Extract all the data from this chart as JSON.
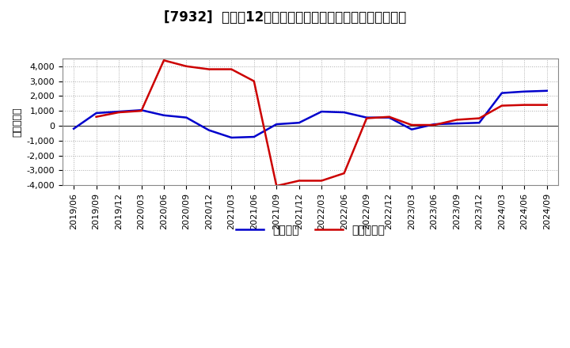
{
  "title": "[7932]  利益だ12か月移動合計の対前年同期増減額の推移",
  "ylabel": "（百万円）",
  "ylim": [
    -4000,
    4500
  ],
  "yticks": [
    -4000,
    -3000,
    -2000,
    -1000,
    0,
    1000,
    2000,
    3000,
    4000
  ],
  "x_labels": [
    "2019/06",
    "2019/09",
    "2019/12",
    "2020/03",
    "2020/06",
    "2020/09",
    "2020/12",
    "2021/03",
    "2021/06",
    "2021/09",
    "2021/12",
    "2022/03",
    "2022/06",
    "2022/09",
    "2022/12",
    "2023/03",
    "2023/06",
    "2023/09",
    "2023/12",
    "2024/03",
    "2024/06",
    "2024/09"
  ],
  "blue_x": [
    "2019/06",
    "2019/09",
    "2019/12",
    "2020/03",
    "2020/06",
    "2020/09",
    "2020/12",
    "2021/03",
    "2021/06",
    "2021/09",
    "2021/12",
    "2022/03",
    "2022/06",
    "2022/09",
    "2022/12",
    "2023/03",
    "2023/06",
    "2023/09",
    "2023/12",
    "2024/03",
    "2024/06",
    "2024/09"
  ],
  "blue_y": [
    -200,
    850,
    950,
    1050,
    700,
    550,
    -300,
    -800,
    -750,
    100,
    200,
    950,
    900,
    550,
    550,
    -250,
    100,
    150,
    200,
    2200,
    2300,
    2350
  ],
  "red_x": [
    "2019/09",
    "2019/12",
    "2020/03",
    "2020/06",
    "2020/09",
    "2020/12",
    "2021/03",
    "2021/06",
    "2021/09",
    "2021/12",
    "2022/03",
    "2022/06",
    "2022/09",
    "2022/12",
    "2023/03",
    "2023/06",
    "2023/09",
    "2023/12",
    "2024/03",
    "2024/06",
    "2024/09"
  ],
  "red_y": [
    600,
    900,
    1000,
    4400,
    4000,
    3800,
    3800,
    3000,
    -4050,
    -3700,
    -3700,
    -3200,
    500,
    600,
    50,
    50,
    400,
    500,
    1350,
    1400,
    1400
  ],
  "blue_color": "#0000cc",
  "red_color": "#cc0000",
  "line_width": 1.8,
  "background_color": "#ffffff",
  "plot_bg_color": "#ffffff",
  "grid_color": "#aaaaaa",
  "legend_blue": "経常利益",
  "legend_red": "当期絔利益",
  "title_fontsize": 12,
  "label_fontsize": 9,
  "tick_fontsize": 8,
  "legend_fontsize": 10
}
